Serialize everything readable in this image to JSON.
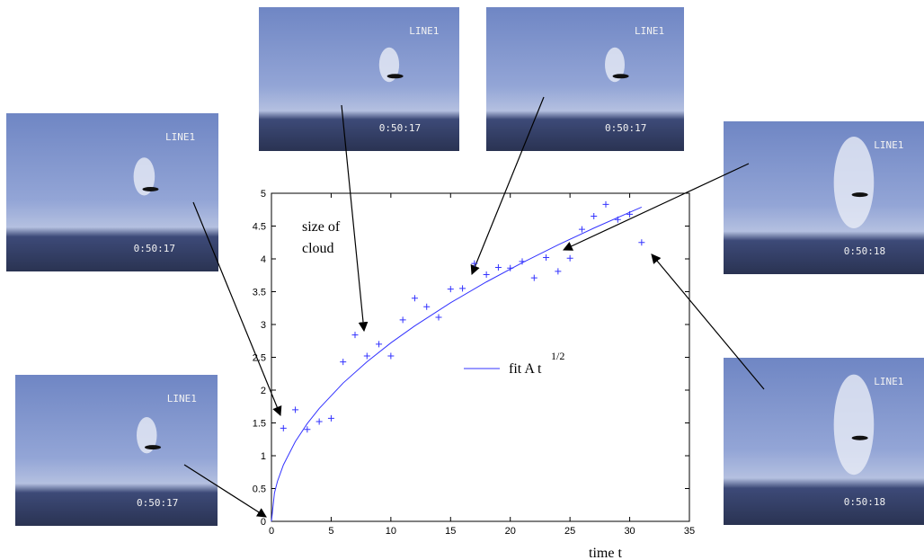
{
  "chart_data": {
    "type": "scatter",
    "annotation": [
      "size of",
      "cloud"
    ],
    "x_label": "time t",
    "xlim": [
      0,
      35
    ],
    "xticks": [
      0,
      5,
      10,
      15,
      20,
      25,
      30,
      35
    ],
    "ylim": [
      0,
      5
    ],
    "yticks": [
      0,
      0.5,
      1,
      1.5,
      2,
      2.5,
      3,
      3.5,
      4,
      4.5,
      5
    ],
    "series": [
      {
        "kind": "points",
        "color": "#3333ff",
        "x": [
          1,
          2,
          3,
          4,
          5,
          6,
          7,
          8,
          9,
          10,
          11,
          12,
          13,
          14,
          15,
          16,
          17,
          18,
          19,
          20,
          21,
          22,
          23,
          24,
          25,
          26,
          27,
          28,
          29,
          30,
          31
        ],
        "values": [
          1.42,
          1.7,
          1.4,
          1.52,
          1.57,
          2.43,
          2.84,
          2.52,
          2.7,
          2.52,
          3.07,
          3.4,
          3.27,
          3.11,
          3.54,
          3.55,
          3.93,
          3.76,
          3.87,
          3.86,
          3.96,
          3.71,
          4.02,
          3.81,
          4.01,
          4.45,
          4.65,
          4.83,
          4.6,
          4.68,
          4.25
        ]
      },
      {
        "kind": "line",
        "name": "fit A t",
        "exponent": "1/2",
        "color": "#3333ff",
        "x": [
          0,
          0.25,
          0.5,
          1,
          2,
          3,
          4,
          6,
          8,
          10,
          12,
          15,
          18,
          21,
          24,
          27,
          30,
          31
        ],
        "values": [
          0,
          0.43,
          0.608,
          0.86,
          1.216,
          1.49,
          1.72,
          2.107,
          2.432,
          2.72,
          2.979,
          3.331,
          3.649,
          3.941,
          4.213,
          4.469,
          4.71,
          4.788
        ]
      }
    ]
  },
  "photos": [
    {
      "label": "LINE1",
      "time": "0:50:17"
    },
    {
      "label": "LINE1",
      "time": "0:50:17"
    },
    {
      "label": "LINE1",
      "time": "0:50:17"
    },
    {
      "label": "LINE1",
      "time": "0:50:17"
    },
    {
      "label": "LINE1",
      "time": "0:50:18"
    },
    {
      "label": "LINE1",
      "time": "0:50:18"
    }
  ]
}
